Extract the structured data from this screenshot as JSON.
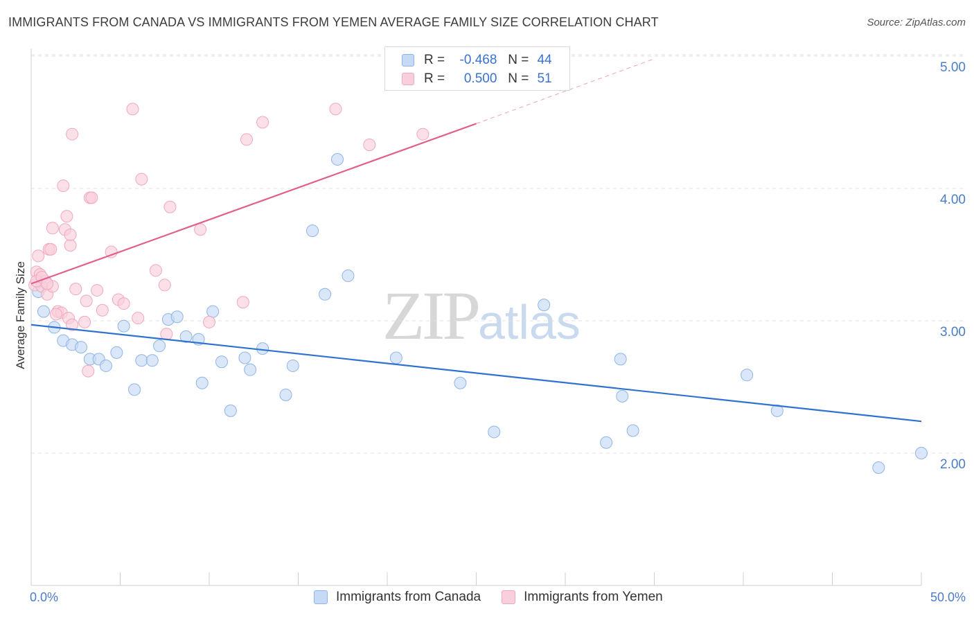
{
  "chart_data": {
    "type": "scatter",
    "title": "IMMIGRANTS FROM CANADA VS IMMIGRANTS FROM YEMEN AVERAGE FAMILY SIZE CORRELATION CHART",
    "source": "Source: ZipAtlas.com",
    "xlabel": "",
    "ylabel": "Average Family Size",
    "xlim": [
      0,
      50
    ],
    "ylim": [
      1.0,
      5.1
    ],
    "x_tick_labels": [
      "0.0%",
      "50.0%"
    ],
    "y_ticks": [
      2.0,
      3.0,
      4.0,
      5.0
    ],
    "y_tick_labels": [
      "2.00",
      "3.00",
      "4.00",
      "5.00"
    ],
    "grid": true,
    "legend_position": "bottom",
    "watermark": {
      "zip": "ZIP",
      "atlas": "atlas"
    },
    "stats": [
      {
        "r_label": "R =",
        "r_value": "-0.468",
        "n_label": "N =",
        "n_value": "44"
      },
      {
        "r_label": "R =",
        "r_value": "0.500",
        "n_label": "N =",
        "n_value": "51"
      }
    ],
    "series": [
      {
        "name": "Immigrants from Canada",
        "color": "#8fb4e8",
        "fill": "#c6daf5",
        "trend_color": "#2f72d0",
        "trend": {
          "x": [
            0,
            50
          ],
          "y": [
            2.97,
            2.24
          ]
        },
        "points": [
          [
            0.4,
            3.22
          ],
          [
            0.7,
            3.07
          ],
          [
            1.3,
            2.95
          ],
          [
            1.8,
            2.85
          ],
          [
            2.3,
            2.82
          ],
          [
            2.8,
            2.8
          ],
          [
            3.3,
            2.71
          ],
          [
            3.8,
            2.71
          ],
          [
            4.2,
            2.66
          ],
          [
            4.8,
            2.76
          ],
          [
            5.2,
            2.96
          ],
          [
            5.8,
            2.48
          ],
          [
            6.2,
            2.7
          ],
          [
            6.8,
            2.7
          ],
          [
            7.2,
            2.81
          ],
          [
            7.7,
            3.01
          ],
          [
            8.2,
            3.03
          ],
          [
            8.7,
            2.88
          ],
          [
            9.4,
            2.86
          ],
          [
            9.6,
            2.53
          ],
          [
            10.2,
            3.07
          ],
          [
            10.7,
            2.69
          ],
          [
            11.2,
            2.32
          ],
          [
            12.0,
            2.72
          ],
          [
            12.3,
            2.63
          ],
          [
            13.0,
            2.79
          ],
          [
            14.3,
            2.44
          ],
          [
            14.7,
            2.66
          ],
          [
            15.8,
            3.68
          ],
          [
            16.5,
            3.2
          ],
          [
            17.2,
            4.22
          ],
          [
            17.8,
            3.34
          ],
          [
            20.5,
            2.72
          ],
          [
            24.1,
            2.53
          ],
          [
            26.0,
            2.16
          ],
          [
            28.8,
            3.12
          ],
          [
            32.3,
            2.08
          ],
          [
            33.1,
            2.71
          ],
          [
            33.2,
            2.43
          ],
          [
            33.8,
            2.17
          ],
          [
            40.2,
            2.59
          ],
          [
            41.9,
            2.32
          ],
          [
            47.6,
            1.89
          ],
          [
            50.0,
            2.0
          ]
        ]
      },
      {
        "name": "Immigrants from Yemen",
        "color": "#f1a7bf",
        "fill": "#f9cfdc",
        "trend_color": "#e0608d",
        "trend": {
          "x": [
            0,
            25
          ],
          "y": [
            3.28,
            4.49
          ]
        },
        "trend_dashed": {
          "x": [
            25,
            35
          ],
          "y": [
            4.49,
            4.98
          ]
        },
        "points": [
          [
            0.2,
            3.27
          ],
          [
            0.3,
            3.37
          ],
          [
            0.4,
            3.49
          ],
          [
            0.5,
            3.35
          ],
          [
            0.6,
            3.26
          ],
          [
            0.8,
            3.3
          ],
          [
            0.9,
            3.2
          ],
          [
            1.0,
            3.54
          ],
          [
            1.1,
            3.54
          ],
          [
            1.2,
            3.26
          ],
          [
            1.2,
            3.7
          ],
          [
            1.5,
            3.07
          ],
          [
            1.7,
            3.06
          ],
          [
            1.8,
            4.02
          ],
          [
            1.9,
            3.69
          ],
          [
            2.0,
            3.79
          ],
          [
            2.1,
            3.02
          ],
          [
            2.2,
            3.57
          ],
          [
            2.2,
            3.65
          ],
          [
            2.3,
            2.97
          ],
          [
            2.3,
            4.41
          ],
          [
            2.5,
            3.24
          ],
          [
            3.0,
            2.99
          ],
          [
            3.1,
            3.15
          ],
          [
            3.2,
            2.62
          ],
          [
            3.3,
            3.93
          ],
          [
            3.4,
            3.93
          ],
          [
            3.7,
            3.23
          ],
          [
            4.0,
            3.08
          ],
          [
            4.5,
            3.52
          ],
          [
            4.9,
            3.16
          ],
          [
            5.2,
            3.13
          ],
          [
            5.7,
            4.6
          ],
          [
            6.0,
            3.02
          ],
          [
            6.2,
            4.07
          ],
          [
            7.0,
            3.38
          ],
          [
            7.5,
            3.27
          ],
          [
            7.8,
            3.86
          ],
          [
            7.6,
            2.9
          ],
          [
            9.5,
            3.69
          ],
          [
            10.0,
            2.99
          ],
          [
            11.9,
            3.14
          ],
          [
            12.1,
            4.37
          ],
          [
            13.0,
            4.5
          ],
          [
            17.1,
            4.6
          ],
          [
            19.0,
            4.33
          ],
          [
            22.0,
            4.41
          ],
          [
            0.3,
            3.3
          ],
          [
            0.6,
            3.33
          ],
          [
            1.4,
            3.05
          ],
          [
            0.9,
            3.28
          ]
        ]
      }
    ]
  }
}
